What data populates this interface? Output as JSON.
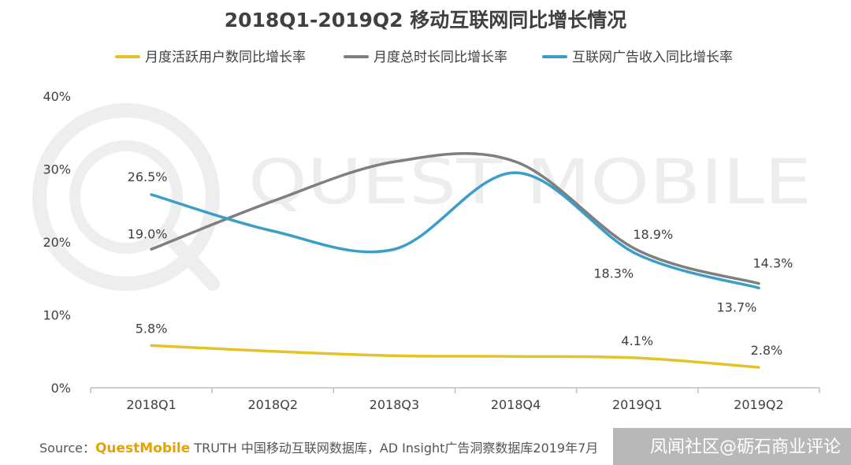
{
  "chart_data": {
    "type": "line",
    "title": "2018Q1-2019Q2 移动互联网同比增长情况",
    "categories": [
      "2018Q1",
      "2018Q2",
      "2018Q3",
      "2018Q4",
      "2019Q1",
      "2019Q2"
    ],
    "y_ticks": [
      "0%",
      "10%",
      "20%",
      "30%",
      "40%"
    ],
    "ylim": [
      0,
      40
    ],
    "legend_position": "top",
    "series": [
      {
        "name": "月度活跃用户数同比增长率",
        "color": "#e6c229",
        "values": [
          5.8,
          5.0,
          4.4,
          4.3,
          4.1,
          2.8
        ],
        "labels": [
          "5.8%",
          null,
          null,
          null,
          "4.1%",
          "2.8%"
        ]
      },
      {
        "name": "月度总时长同比增长率",
        "color": "#7f7f7f",
        "values": [
          19.0,
          25.6,
          31.0,
          31.0,
          18.9,
          14.3
        ],
        "labels": [
          "19.0%",
          null,
          null,
          null,
          "18.9%",
          "14.3%"
        ]
      },
      {
        "name": "互联网广告收入同比增长率",
        "color": "#3b9ec8",
        "values": [
          26.5,
          21.5,
          19.0,
          29.5,
          18.3,
          13.7
        ],
        "labels": [
          "26.5%",
          null,
          null,
          null,
          "18.3%",
          "13.7%"
        ]
      }
    ]
  },
  "watermark": "QUEST MOBILE",
  "footer": {
    "source_prefix": "Source：",
    "brand": "QuestMobile",
    "source_text": " TRUTH 中国移动互联网数据库，AD Insight广告洞察数据库2019年7月"
  },
  "credit": "凤闻社区@砺石商业评论"
}
